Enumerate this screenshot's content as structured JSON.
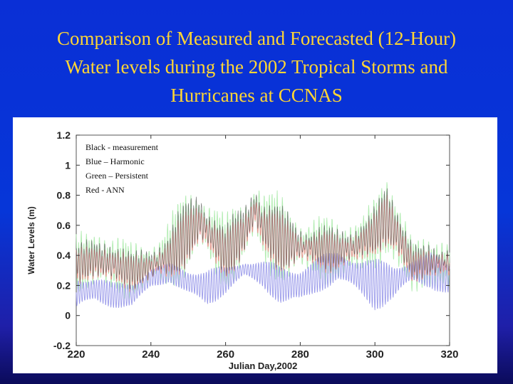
{
  "slide": {
    "title_lines": [
      "Comparison of Measured and Forecasted  (12-Hour)",
      "Water levels during the 2002 Tropical Storms and",
      "Hurricanes at CCNAS"
    ]
  },
  "colors": {
    "background": "#0636d8",
    "title": "#ffd633",
    "measurement": "#555555",
    "harmonic": "#8f8fe8",
    "persistent": "#a8eaa8",
    "ann": "#f08a8a"
  },
  "chart_data": {
    "type": "line",
    "title": "",
    "xlabel": "Julian Day,2002",
    "ylabel": "Water Levels (m)",
    "xlim": [
      220,
      320
    ],
    "ylim": [
      -0.2,
      1.2
    ],
    "xticks": [
      "220",
      "240",
      "260",
      "280",
      "300",
      "320"
    ],
    "yticks": [
      "1.2",
      "1",
      "0.8",
      "0.6",
      "0.4",
      "0.2",
      "0",
      "-0.2"
    ],
    "grid": false,
    "legend_position": "top-left",
    "legend": [
      "Black - measurement",
      "Blue – Harmonic",
      "Green – Persistent",
      "Red - ANN"
    ],
    "series": [
      {
        "name": "measurement",
        "envelope_days": [
          220,
          225,
          230,
          235,
          240,
          245,
          250,
          253,
          256,
          260,
          265,
          268,
          270,
          275,
          280,
          285,
          290,
          295,
          300,
          303,
          306,
          310,
          315,
          320
        ],
        "envelope_low": [
          0.22,
          0.25,
          0.24,
          0.2,
          0.23,
          0.27,
          0.36,
          0.42,
          0.38,
          0.3,
          0.4,
          0.5,
          0.42,
          0.34,
          0.33,
          0.34,
          0.33,
          0.35,
          0.42,
          0.48,
          0.42,
          0.22,
          0.28,
          0.3
        ],
        "envelope_high": [
          0.48,
          0.52,
          0.47,
          0.4,
          0.45,
          0.54,
          0.78,
          0.88,
          0.72,
          0.55,
          0.75,
          0.96,
          0.78,
          0.68,
          0.62,
          0.58,
          0.55,
          0.6,
          0.72,
          0.86,
          0.7,
          0.5,
          0.45,
          0.42
        ]
      },
      {
        "name": "harmonic",
        "envelope_days": [
          220,
          225,
          230,
          235,
          240,
          245,
          250,
          255,
          260,
          265,
          270,
          275,
          280,
          285,
          290,
          295,
          300,
          305,
          310,
          315,
          320
        ],
        "envelope_low": [
          0.0,
          0.08,
          0.05,
          0.02,
          0.18,
          0.22,
          0.1,
          0.05,
          0.14,
          0.24,
          0.18,
          0.06,
          0.04,
          0.15,
          0.22,
          0.12,
          0.03,
          0.08,
          0.2,
          0.18,
          0.1
        ],
        "envelope_high": [
          0.3,
          0.27,
          0.22,
          0.25,
          0.32,
          0.35,
          0.34,
          0.32,
          0.33,
          0.38,
          0.37,
          0.34,
          0.36,
          0.4,
          0.44,
          0.42,
          0.38,
          0.36,
          0.4,
          0.42,
          0.38
        ]
      },
      {
        "name": "persistent",
        "envelope_days": [
          220,
          225,
          230,
          235,
          240,
          245,
          250,
          253,
          256,
          260,
          265,
          268,
          270,
          275,
          280,
          285,
          290,
          295,
          300,
          303,
          306,
          310,
          315,
          320
        ],
        "envelope_low": [
          0.12,
          0.18,
          0.16,
          0.14,
          0.18,
          0.22,
          0.28,
          0.34,
          0.3,
          0.24,
          0.3,
          0.42,
          0.34,
          0.26,
          0.24,
          0.26,
          0.24,
          0.26,
          0.32,
          0.4,
          0.32,
          0.12,
          0.18,
          0.22
        ],
        "envelope_high": [
          0.55,
          0.58,
          0.52,
          0.45,
          0.5,
          0.6,
          0.84,
          0.92,
          0.78,
          0.6,
          0.8,
          1.0,
          0.84,
          0.74,
          0.68,
          0.64,
          0.6,
          0.66,
          0.78,
          0.9,
          0.76,
          0.56,
          0.5,
          0.46
        ]
      },
      {
        "name": "ann",
        "envelope_days": [
          220,
          225,
          230,
          235,
          240,
          245,
          250,
          253,
          256,
          260,
          265,
          268,
          270,
          275,
          280,
          285,
          290,
          295,
          300,
          303,
          306,
          310,
          315,
          320
        ],
        "envelope_low": [
          0.2,
          0.23,
          0.22,
          0.18,
          0.22,
          0.26,
          0.34,
          0.4,
          0.36,
          0.28,
          0.38,
          0.48,
          0.4,
          0.32,
          0.31,
          0.32,
          0.31,
          0.33,
          0.4,
          0.46,
          0.4,
          0.2,
          0.26,
          0.28
        ],
        "envelope_high": [
          0.45,
          0.48,
          0.44,
          0.38,
          0.42,
          0.5,
          0.72,
          0.82,
          0.68,
          0.52,
          0.7,
          0.9,
          0.74,
          0.64,
          0.58,
          0.55,
          0.52,
          0.57,
          0.68,
          0.82,
          0.66,
          0.46,
          0.42,
          0.4
        ]
      }
    ]
  }
}
